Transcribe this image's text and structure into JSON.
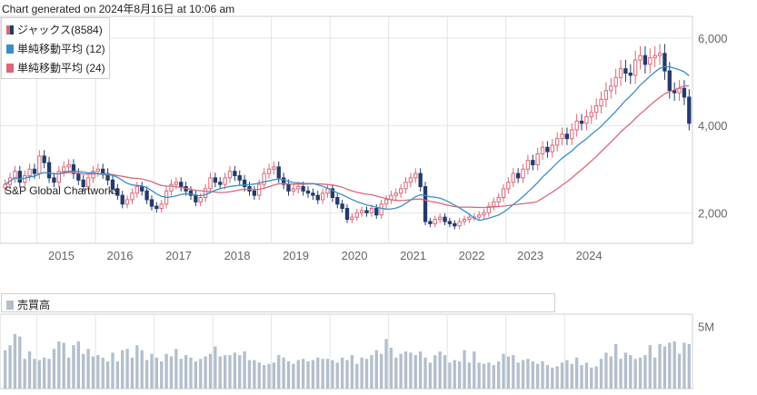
{
  "generated_text": "Chart generated on 2024年8月16日 at 10:06 am",
  "watermark": "S&P Global Chartworks",
  "colors": {
    "candle_up": "#d9687a",
    "candle_down": "#243a6b",
    "sma12": "#3a8fc7",
    "sma24": "#d9687a",
    "volume": "#b3bfcc",
    "grid": "#e4e4e4"
  },
  "legend": [
    {
      "label": "ジャックス(8584)",
      "icon": "candlestick-icon"
    },
    {
      "label": "単純移動平均 (12)",
      "color": "#3a8fc7"
    },
    {
      "label": "単純移動平均 (24)",
      "color": "#d9687a"
    }
  ],
  "volume_legend": {
    "label": "売買高",
    "color": "#b3bfcc"
  },
  "chart_data": [
    {
      "type": "candlestick",
      "x_tick_labels": [
        "2015",
        "2016",
        "2017",
        "2018",
        "2019",
        "2020",
        "2021",
        "2022",
        "2023",
        "2024"
      ],
      "y_tick_labels": [
        "2,000",
        "4,000",
        "6,000"
      ],
      "ylim": [
        1300,
        6500
      ],
      "grid": true,
      "period": "monthly",
      "start": "2014-06",
      "closes": [
        2650,
        2800,
        2950,
        2700,
        2850,
        3000,
        2900,
        3300,
        3150,
        2800,
        2700,
        2950,
        3050,
        3100,
        2900,
        2750,
        2600,
        2800,
        2950,
        3000,
        2900,
        2750,
        2550,
        2400,
        2200,
        2300,
        2450,
        2600,
        2500,
        2300,
        2150,
        2100,
        2200,
        2500,
        2650,
        2700,
        2600,
        2500,
        2400,
        2250,
        2350,
        2550,
        2800,
        2700,
        2650,
        2800,
        2950,
        2850,
        2750,
        2600,
        2500,
        2400,
        2650,
        2900,
        3000,
        3050,
        2800,
        2650,
        2500,
        2550,
        2600,
        2500,
        2450,
        2400,
        2300,
        2450,
        2550,
        2350,
        2200,
        2100,
        1850,
        1900,
        2000,
        2050,
        2000,
        2100,
        1950,
        2200,
        2300,
        2400,
        2450,
        2550,
        2700,
        2800,
        2900,
        2600,
        1800,
        1750,
        1850,
        1900,
        1800,
        1750,
        1700,
        1800,
        1850,
        1900,
        1900,
        1950,
        2000,
        2150,
        2250,
        2350,
        2550,
        2700,
        2900,
        2800,
        3000,
        3200,
        3100,
        3350,
        3500,
        3400,
        3550,
        3700,
        3800,
        3700,
        3900,
        4100,
        4050,
        4200,
        4300,
        4450,
        4600,
        4800,
        4900,
        5100,
        5300,
        5200,
        5150,
        5500,
        5600,
        5400,
        5550,
        5600,
        5650,
        5250,
        4800,
        4750,
        4850,
        4650,
        4050
      ],
      "sma12_note": "12-month simple moving average",
      "sma24_note": "24-month simple moving average"
    },
    {
      "type": "bar",
      "name": "売買高",
      "y_tick_labels": [
        "5M"
      ],
      "ylim": [
        0,
        6000000
      ],
      "values": [
        3100000,
        3500000,
        4400000,
        4200000,
        2400000,
        3000000,
        2400000,
        2300000,
        2500000,
        2400000,
        3200000,
        3800000,
        3700000,
        2500000,
        3500000,
        3800000,
        2800000,
        3200000,
        2600000,
        2700000,
        2500000,
        2200000,
        2900000,
        2200000,
        3100000,
        3200000,
        2500000,
        3500000,
        3100000,
        2300000,
        2800000,
        2500000,
        2200000,
        2800000,
        2600000,
        3200000,
        2400000,
        2700000,
        2500000,
        2200000,
        2400000,
        2600000,
        2800000,
        3400000,
        2600000,
        2700000,
        2700000,
        2900000,
        2700000,
        3000000,
        2300000,
        2300000,
        2100000,
        1900000,
        2000000,
        2100000,
        2700000,
        2500000,
        2200000,
        2000000,
        2300000,
        2400000,
        2200000,
        2300000,
        2500000,
        2400000,
        2400000,
        2300000,
        2100000,
        2500000,
        2300000,
        2700000,
        2000000,
        2500000,
        2400000,
        2700000,
        3100000,
        2800000,
        4000000,
        3300000,
        2500000,
        2800000,
        3000000,
        2900000,
        2700000,
        3000000,
        2500000,
        2100000,
        2700000,
        3000000,
        2700000,
        2100000,
        2300000,
        2200000,
        3100000,
        2100000,
        3000000,
        2100000,
        2000000,
        2100000,
        1900000,
        2200000,
        2800000,
        2600000,
        2700000,
        2100000,
        2300000,
        2400000,
        2200000,
        2000000,
        2200000,
        1900000,
        1700000,
        1800000,
        2100000,
        2300000,
        2000000,
        2500000,
        1900000,
        2100000,
        1700000,
        1800000,
        2400000,
        2900000,
        2600000,
        3600000,
        2400000,
        2900000,
        2700000,
        2400000,
        2500000,
        2700000,
        3500000,
        2500000,
        3600000,
        3400000,
        3700000,
        3800000,
        2800000,
        3700000,
        3600000
      ]
    }
  ]
}
